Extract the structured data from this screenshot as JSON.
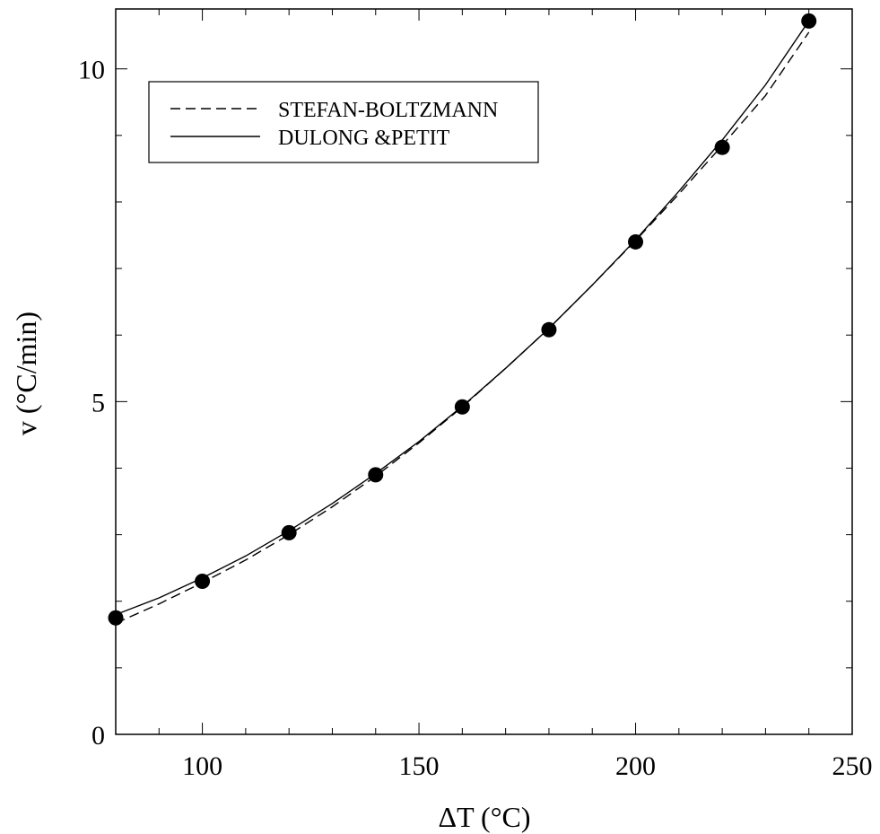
{
  "chart_data": {
    "type": "scatter",
    "title": "",
    "xlabel": "ΔT (°C)",
    "ylabel": "v (°C/min)",
    "xlim": [
      80,
      250
    ],
    "ylim": [
      0,
      10.9
    ],
    "x_ticks": [
      100,
      150,
      200,
      250
    ],
    "x_tick_labels": [
      "100",
      "150",
      "200",
      "250"
    ],
    "y_ticks": [
      0,
      5,
      10
    ],
    "y_tick_labels": [
      "0",
      "5",
      "10"
    ],
    "grid": false,
    "legend_position": "top-left",
    "points": {
      "x": [
        80,
        100,
        120,
        140,
        160,
        180,
        200,
        220,
        240
      ],
      "y": [
        1.75,
        2.3,
        3.03,
        3.9,
        4.92,
        6.08,
        7.4,
        8.82,
        10.72
      ]
    },
    "series": [
      {
        "name": "STEFAN-BOLTZMANN",
        "style": "dashed",
        "x": [
          80,
          90,
          100,
          110,
          120,
          130,
          140,
          150,
          160,
          170,
          180,
          190,
          200,
          210,
          220,
          230,
          240
        ],
        "y": [
          1.67,
          1.96,
          2.28,
          2.62,
          3.0,
          3.42,
          3.88,
          4.38,
          4.92,
          5.5,
          6.1,
          6.75,
          7.42,
          8.12,
          8.85,
          9.6,
          10.55
        ]
      },
      {
        "name": "DULONG &PETIT",
        "style": "solid",
        "x": [
          80,
          90,
          100,
          110,
          120,
          130,
          140,
          150,
          160,
          170,
          180,
          190,
          200,
          210,
          220,
          230,
          240
        ],
        "y": [
          1.8,
          2.05,
          2.35,
          2.68,
          3.06,
          3.47,
          3.92,
          4.4,
          4.93,
          5.5,
          6.1,
          6.75,
          7.43,
          8.16,
          8.93,
          9.76,
          10.72
        ]
      }
    ]
  }
}
